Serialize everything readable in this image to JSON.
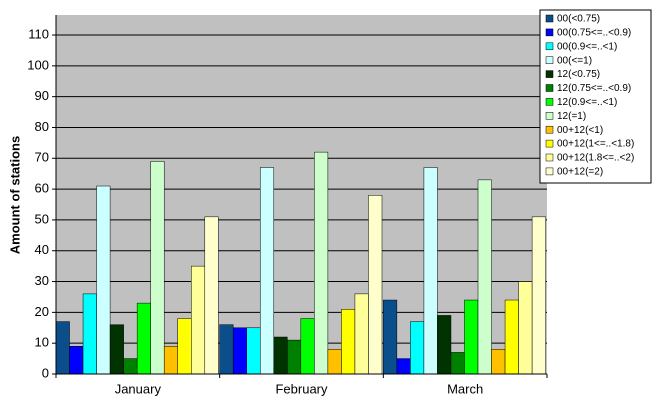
{
  "chart_data": {
    "type": "bar",
    "y_label": "Amount of stations",
    "categories": [
      "January",
      "February",
      "March"
    ],
    "series": [
      {
        "name": "00(<0.75)",
        "color": "#0b4e8c",
        "values": [
          17,
          16,
          24
        ]
      },
      {
        "name": "00(0.75<=..<0.9)",
        "color": "#0000ff",
        "values": [
          9,
          15,
          5
        ]
      },
      {
        "name": "00(0.9<=..<1)",
        "color": "#00ffff",
        "values": [
          26,
          15,
          17
        ]
      },
      {
        "name": "00(<=1)",
        "color": "#ccffff",
        "values": [
          61,
          67,
          67
        ]
      },
      {
        "name": "12(<0.75)",
        "color": "#003300",
        "values": [
          16,
          12,
          19
        ]
      },
      {
        "name": "12(0.75<=..<0.9)",
        "color": "#008000",
        "values": [
          5,
          11,
          7
        ]
      },
      {
        "name": "12(0.9<=..<1)",
        "color": "#00ff00",
        "values": [
          23,
          18,
          24
        ]
      },
      {
        "name": "12(=1)",
        "color": "#ccffcc",
        "values": [
          69,
          72,
          63
        ]
      },
      {
        "name": "00+12(<1)",
        "color": "#ffc000",
        "values": [
          9,
          8,
          8
        ]
      },
      {
        "name": "00+12(1<=..<1.8)",
        "color": "#ffff00",
        "values": [
          18,
          21,
          24
        ]
      },
      {
        "name": "00+12(1.8<=..<2)",
        "color": "#ffff99",
        "values": [
          35,
          26,
          30
        ]
      },
      {
        "name": "00+12(=2)",
        "color": "#ffffcc",
        "values": [
          51,
          58,
          51
        ]
      }
    ],
    "ylim": [
      0,
      116.5
    ],
    "yticks": [
      0,
      10,
      20,
      30,
      40,
      50,
      60,
      70,
      80,
      90,
      100,
      110
    ],
    "grid": true
  }
}
